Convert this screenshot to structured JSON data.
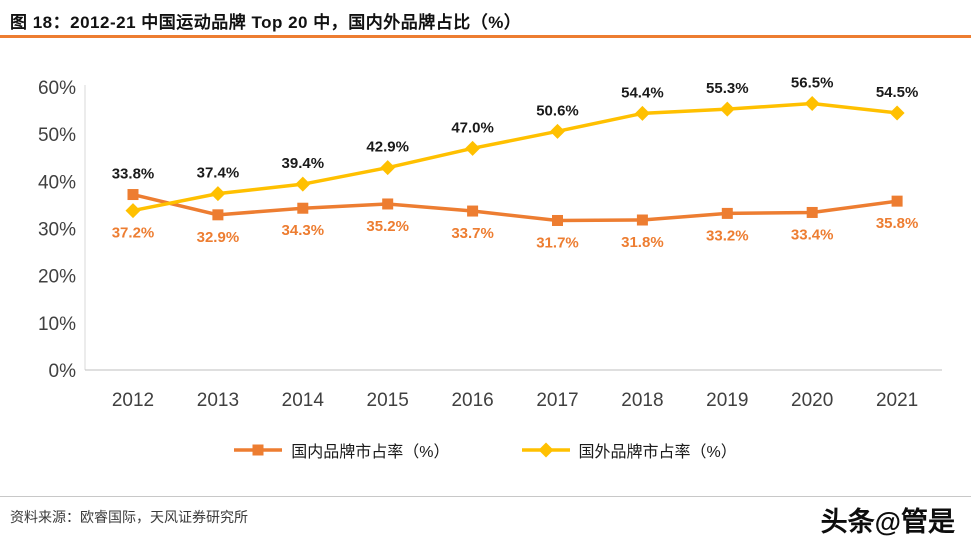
{
  "header": {
    "title": "图 18：2012-21 中国运动品牌 Top 20 中，国内外品牌占比（%）",
    "accent_color": "#ED7D31"
  },
  "chart_data": {
    "type": "line",
    "title": "2012-21 中国运动品牌 Top 20 中，国内外品牌占比（%）",
    "categories": [
      "2012",
      "2013",
      "2014",
      "2015",
      "2016",
      "2017",
      "2018",
      "2019",
      "2020",
      "2021"
    ],
    "series": [
      {
        "name": "国内品牌市占率（%）",
        "color": "#ED7D31",
        "marker": "square",
        "label_color": "#ED7D31",
        "label_position": "below",
        "values": [
          37.2,
          32.9,
          34.3,
          35.2,
          33.7,
          31.7,
          31.8,
          33.2,
          33.4,
          35.8
        ]
      },
      {
        "name": "国外品牌市占率（%）",
        "color": "#FFC000",
        "marker": "diamond",
        "label_color": "#1A1A1A",
        "label_position": "above",
        "values": [
          33.8,
          37.4,
          39.4,
          42.9,
          47.0,
          50.6,
          54.4,
          55.3,
          56.5,
          54.5
        ]
      }
    ],
    "ylim": [
      0,
      60
    ],
    "ytick_step": 10,
    "ytick_labels": [
      "0%",
      "10%",
      "20%",
      "30%",
      "40%",
      "50%",
      "60%"
    ],
    "grid": false,
    "legend_position": "bottom",
    "axis_color": "#BFBFBF",
    "tick_label_color": "#404040"
  },
  "footer": {
    "source": "资料来源：欧睿国际，天风证券研究所",
    "watermark": "头条@管是"
  }
}
